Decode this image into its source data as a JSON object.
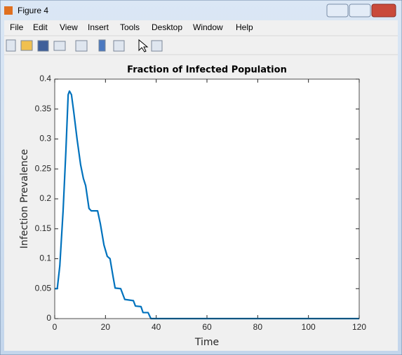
{
  "window": {
    "title": "Figure 4",
    "menu": [
      "File",
      "Edit",
      "View",
      "Insert",
      "Tools",
      "Desktop",
      "Window",
      "Help"
    ]
  },
  "chart_data": {
    "type": "line",
    "title": "Fraction of Infected Population",
    "x_label": "Time",
    "y_label": "Infection Prevalence",
    "x": [
      0,
      1,
      2,
      3.3,
      4.4,
      5.3,
      5.8,
      6.6,
      7.5,
      8.8,
      10.2,
      11.3,
      12.2,
      13.5,
      14.4,
      16.9,
      18,
      19.4,
      20.7,
      21.8,
      23,
      23.8,
      26,
      27.6,
      31,
      31.8,
      34,
      34.8,
      36.8,
      37.9,
      120
    ],
    "values": [
      0.05,
      0.05,
      0.088,
      0.18,
      0.28,
      0.374,
      0.38,
      0.374,
      0.345,
      0.3,
      0.257,
      0.234,
      0.222,
      0.184,
      0.18,
      0.18,
      0.158,
      0.123,
      0.104,
      0.1,
      0.07,
      0.051,
      0.05,
      0.032,
      0.03,
      0.021,
      0.02,
      0.01,
      0.01,
      0,
      0
    ],
    "color": "#0072bd",
    "xlim": [
      0,
      120
    ],
    "xticks": [
      0,
      20,
      40,
      60,
      80,
      100,
      120
    ],
    "ylim": [
      0,
      0.4
    ],
    "yticks": [
      0,
      0.05,
      0.1,
      0.15,
      0.2,
      0.25,
      0.3,
      0.35,
      0.4
    ]
  }
}
